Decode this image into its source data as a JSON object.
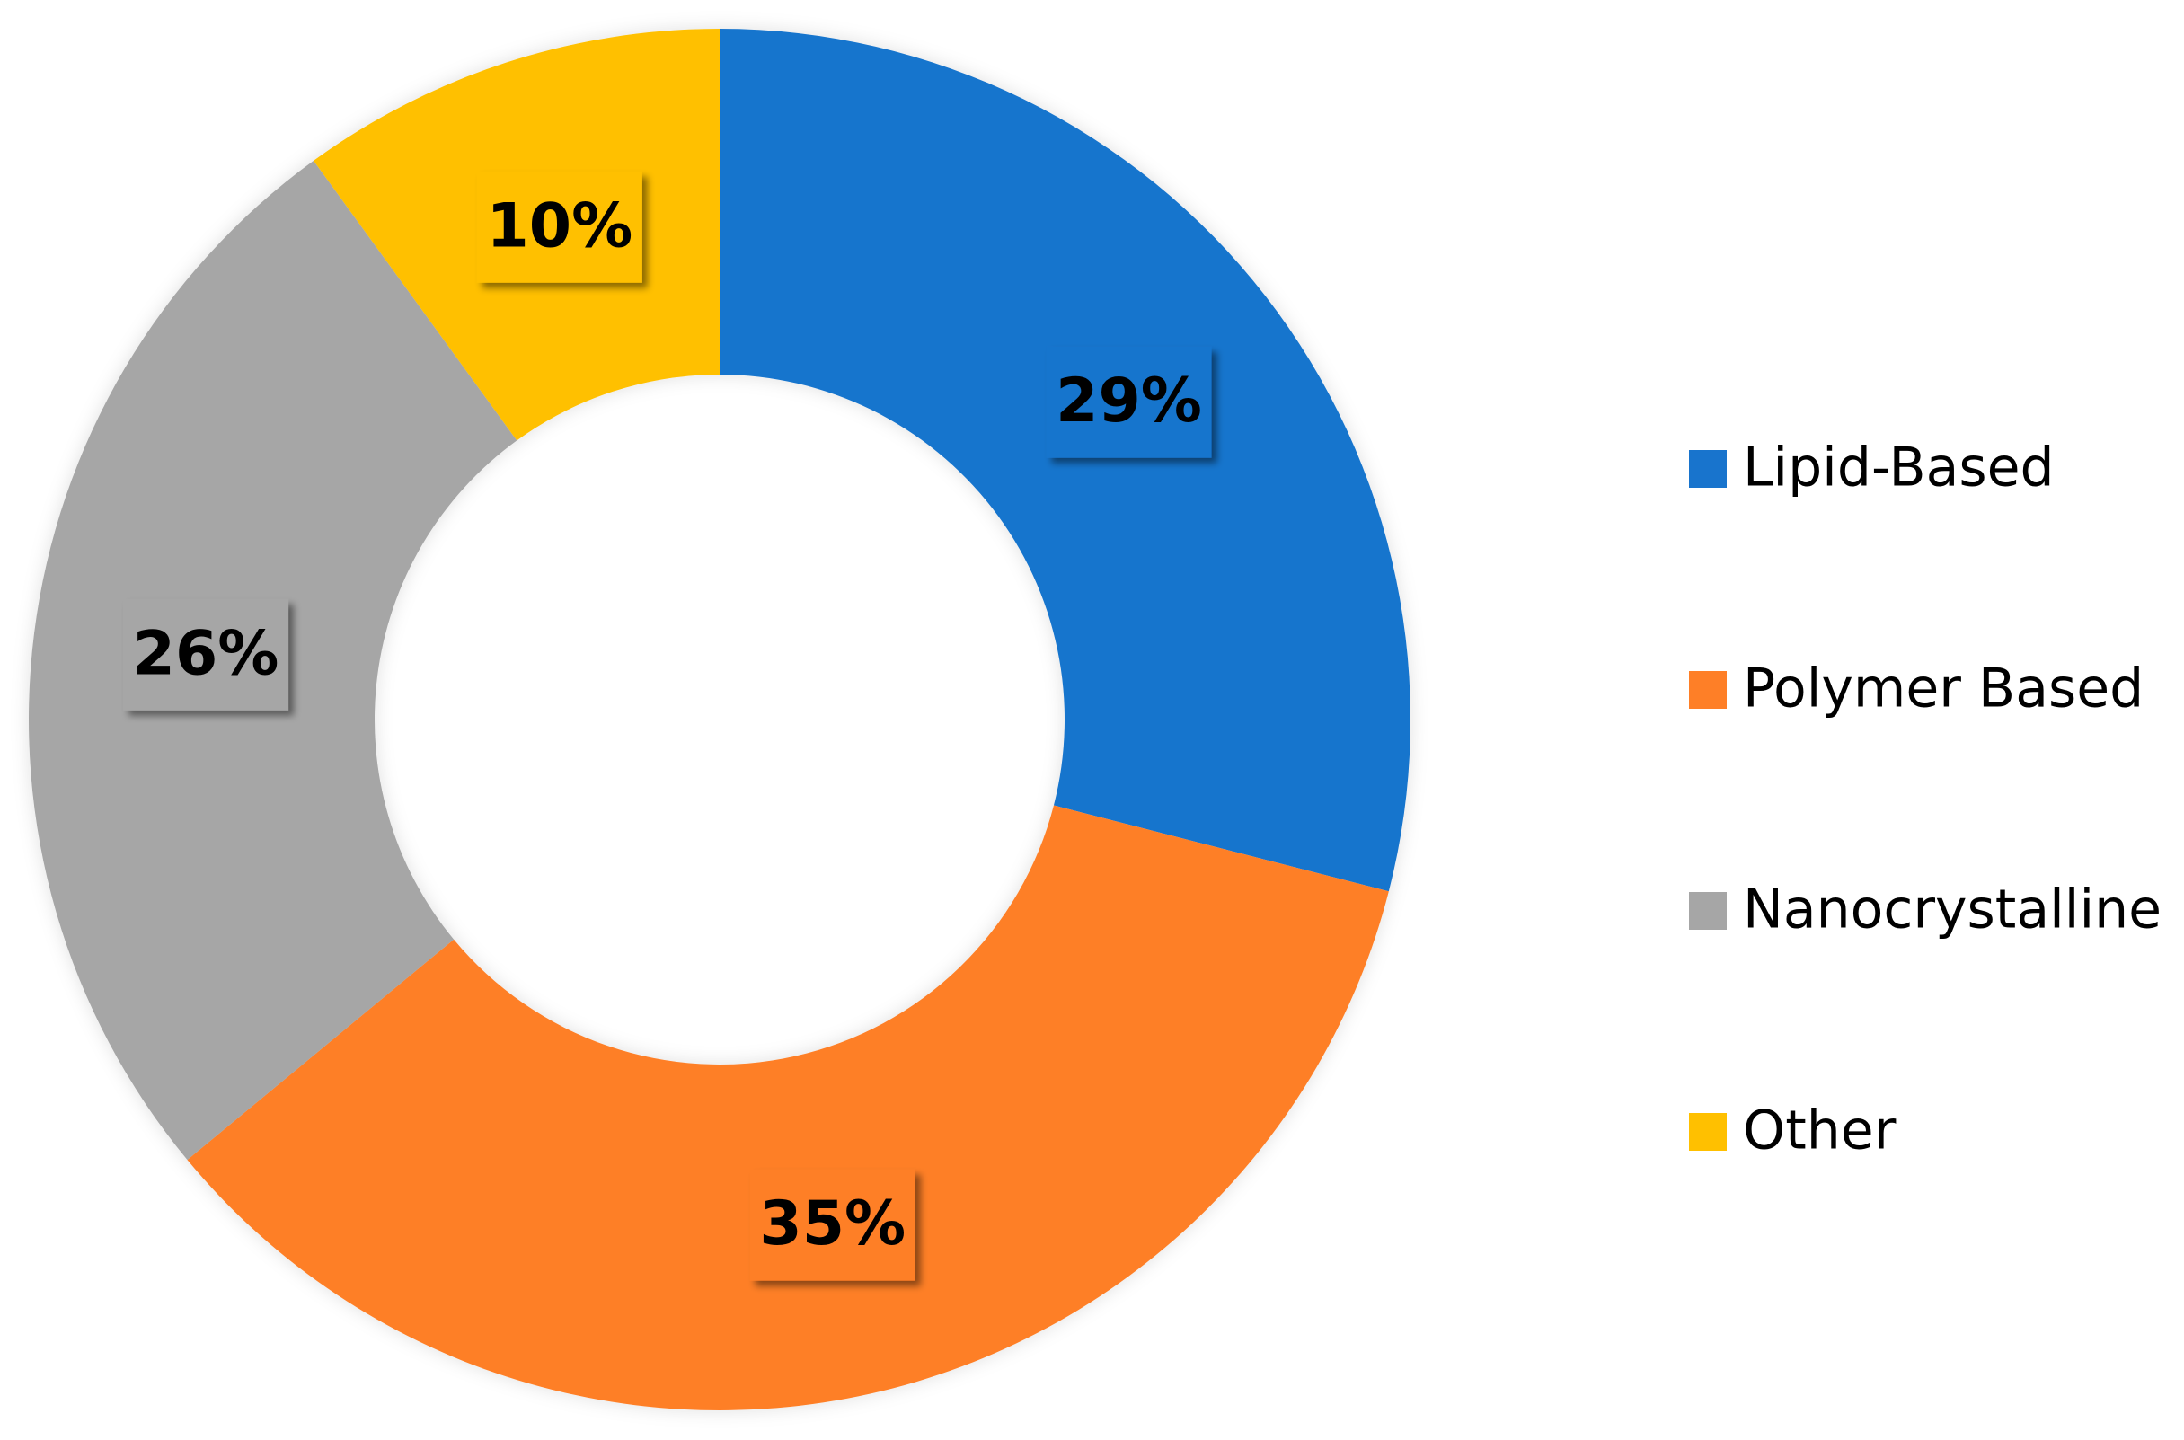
{
  "chart_data": {
    "type": "donut",
    "categories": [
      "Lipid-Based",
      "Polymer Based",
      "Nanocrystalline",
      "Other"
    ],
    "values": [
      29,
      35,
      26,
      10
    ],
    "value_labels": [
      "29%",
      "35%",
      "26%",
      "10%"
    ],
    "colors": [
      "#1874cd",
      "#fe7f27",
      "#a6a6a6",
      "#ffc000"
    ],
    "legend": "right"
  }
}
